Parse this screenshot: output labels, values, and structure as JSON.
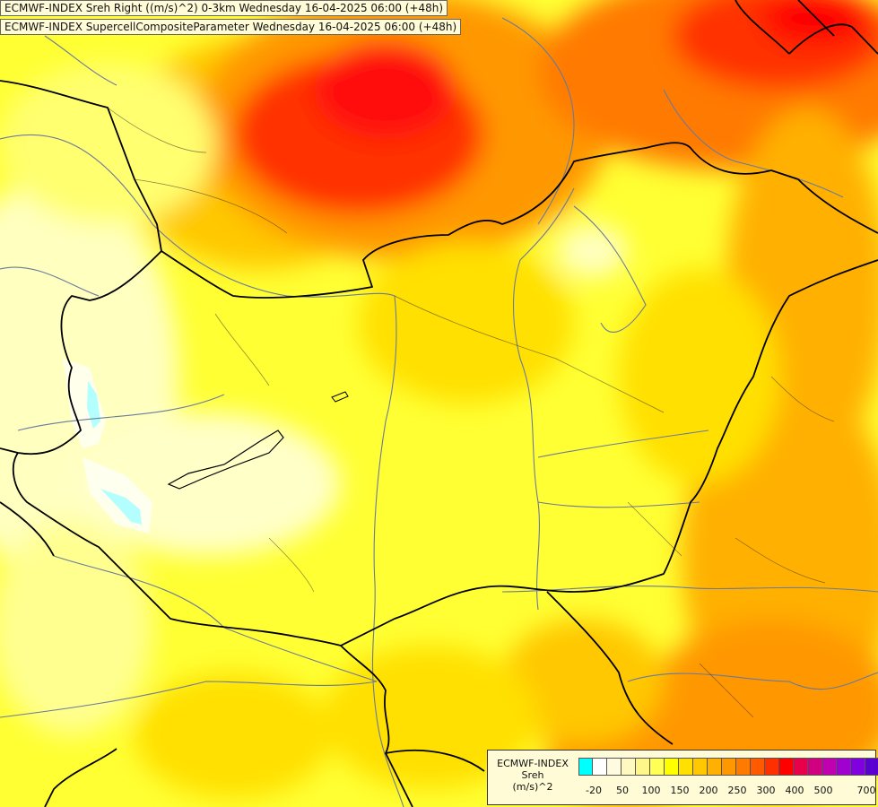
{
  "titles": {
    "line1": "ECMWF-INDEX Sreh Right ((m/s)^2) 0-3km Wednesday 16-04-2025 06:00 (+48h)",
    "line2": "ECMWF-INDEX SupercellCompositeParameter Wednesday 16-04-2025 06:00 (+48h)"
  },
  "legend": {
    "line1": "ECMWF-INDEX",
    "line2": "Sreh",
    "line3": "(m/s)^2",
    "colors": [
      "#00ffff",
      "#ffffff",
      "#fffbe0",
      "#fff8c0",
      "#fff68a",
      "#ffff55",
      "#ffff00",
      "#ffe000",
      "#ffc800",
      "#ffb000",
      "#ff9800",
      "#ff7a00",
      "#ff5a00",
      "#ff3000",
      "#ff0000",
      "#e8004a",
      "#d00080",
      "#c000b0",
      "#a000d0",
      "#8000e0",
      "#5a00d0",
      "#2800b8",
      "#000080"
    ],
    "ticks": [
      "-20",
      "50",
      "100",
      "150",
      "200",
      "250",
      "300",
      "400",
      "500",
      "700"
    ]
  }
}
